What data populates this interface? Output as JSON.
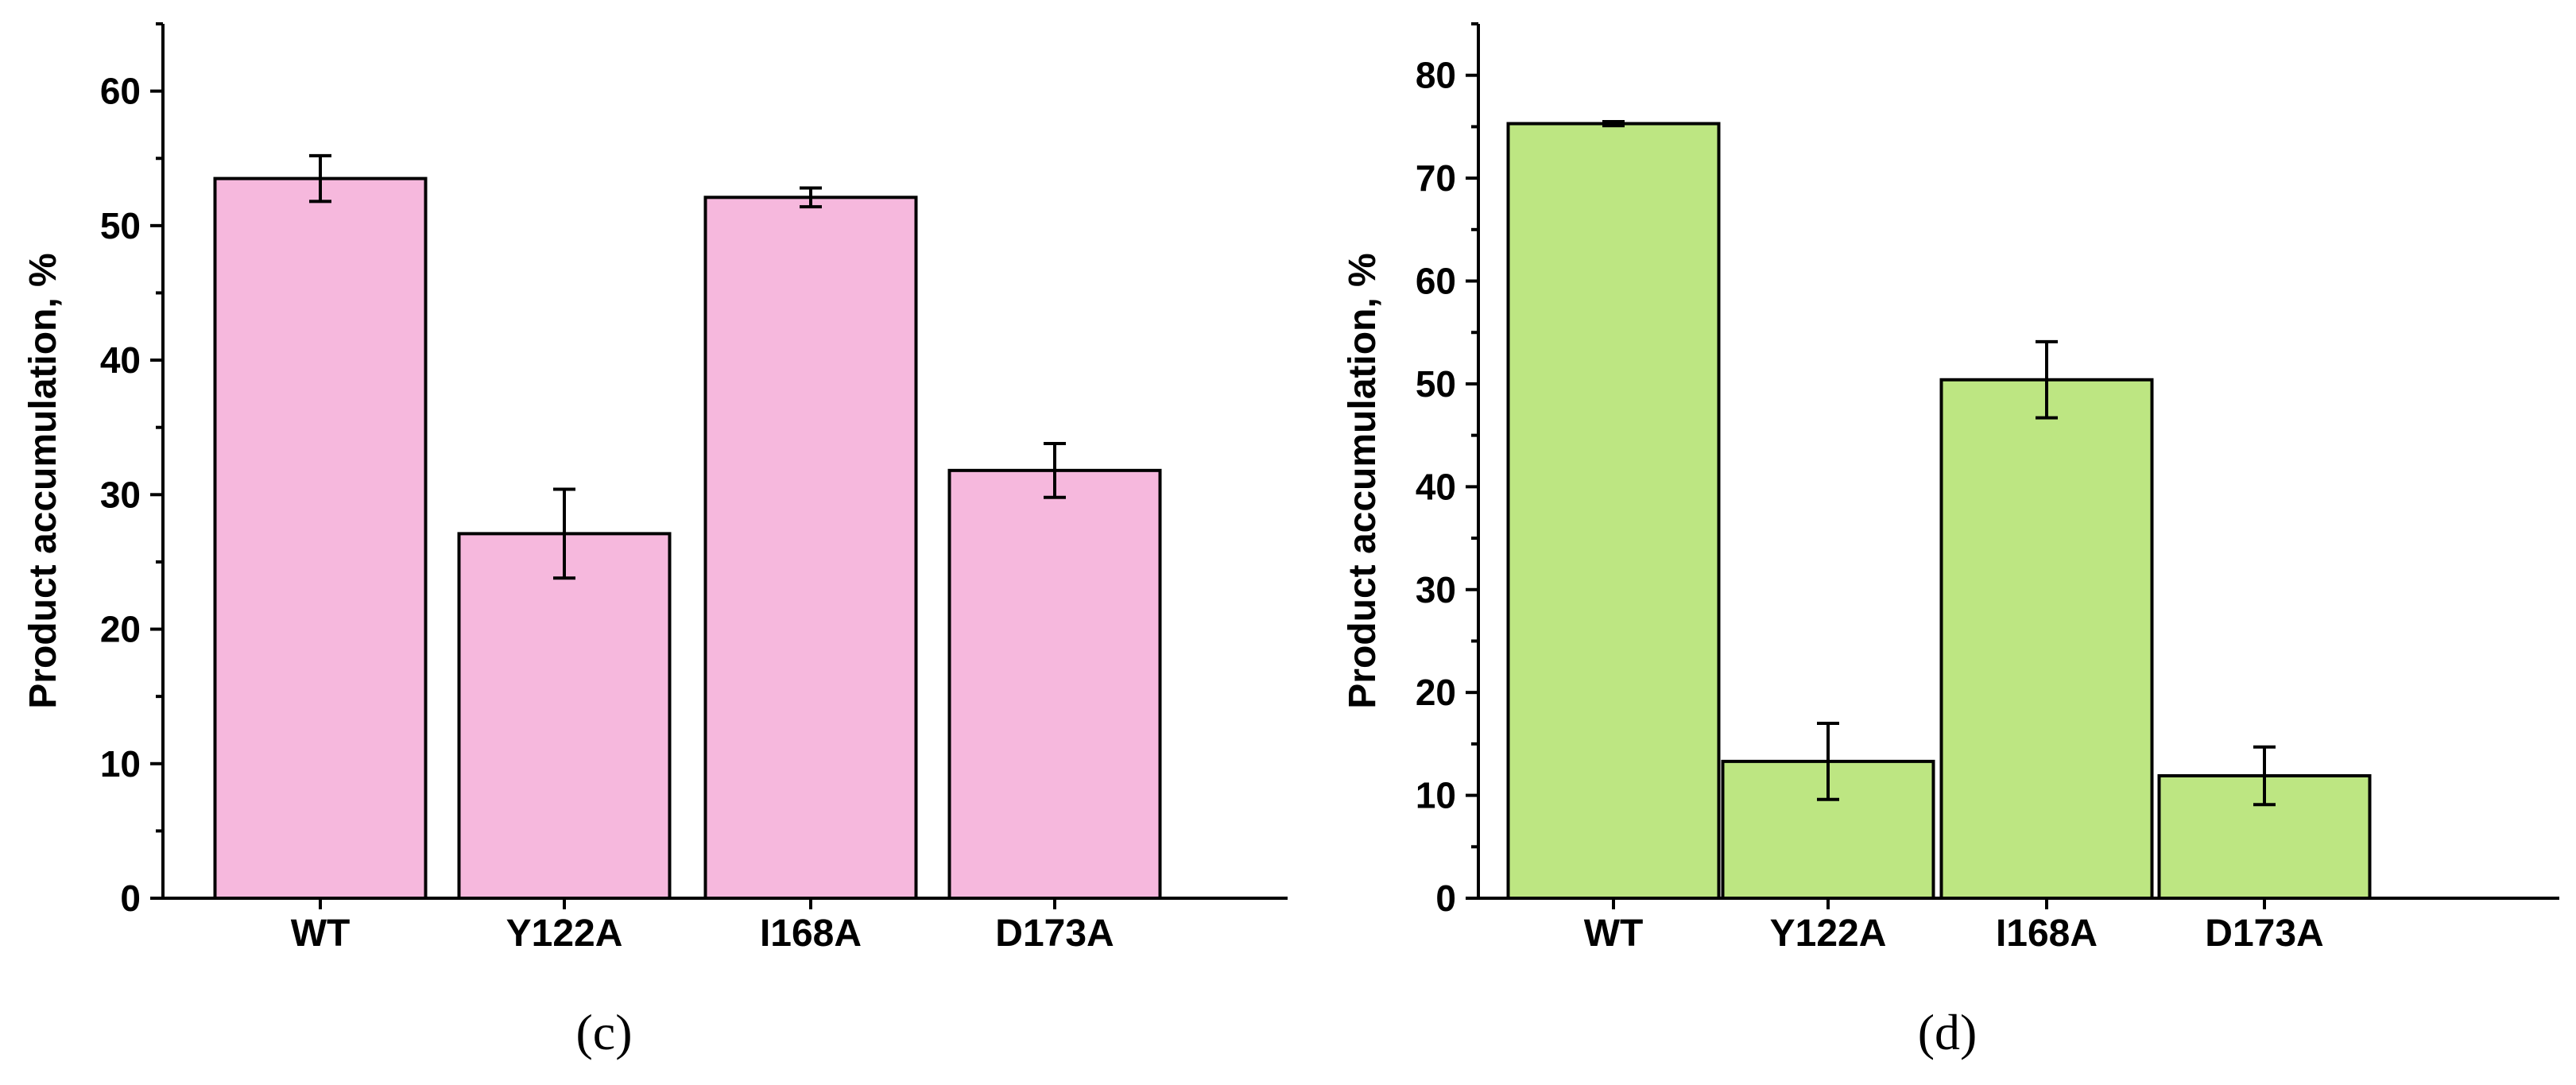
{
  "chart_data": [
    {
      "type": "bar",
      "panel_label": "(c)",
      "categories": [
        "WT",
        "Y122A",
        "I168A",
        "D173A"
      ],
      "values": [
        53.5,
        27.1,
        52.1,
        31.8
      ],
      "errors": [
        1.7,
        3.3,
        0.7,
        2.0
      ],
      "ylabel": "Product accumulation, %",
      "xlabel": "",
      "ylim": [
        0,
        65
      ],
      "yticks": [
        0,
        10,
        20,
        30,
        40,
        50,
        60
      ],
      "bar_color": "#f6b8dd"
    },
    {
      "type": "bar",
      "panel_label": "(d)",
      "categories": [
        "WT",
        "Y122A",
        "I168A",
        "D173A"
      ],
      "values": [
        75.3,
        13.3,
        50.4,
        11.9
      ],
      "errors": [
        0.2,
        3.7,
        3.7,
        2.8
      ],
      "ylabel": "Product accumulation, %",
      "xlabel": "",
      "ylim": [
        0,
        85
      ],
      "yticks": [
        0,
        10,
        20,
        30,
        40,
        50,
        60,
        70,
        80
      ],
      "bar_color": "#bde682"
    }
  ]
}
